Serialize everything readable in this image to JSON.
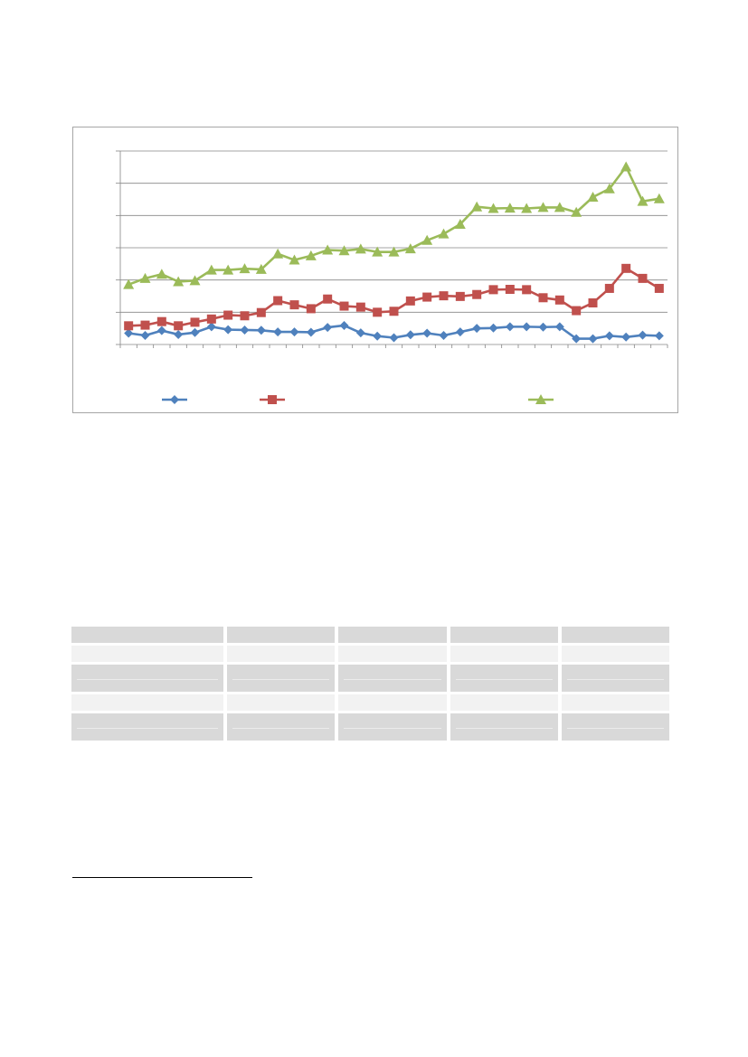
{
  "colors": {
    "series_blue": "#4f81bd",
    "series_red": "#c0504d",
    "series_green": "#9bbb59",
    "gridline": "#868686",
    "table_dark": "#d9d9d9",
    "table_light": "#f2f2f2"
  },
  "chart_data": {
    "type": "line",
    "title": "",
    "xlabel": "",
    "ylabel": "",
    "ylim": [
      0,
      6
    ],
    "grid": true,
    "legend_placement": "bottom",
    "series": [
      {
        "color": "#4f81bd",
        "marker": "diamond",
        "values": [
          0.35,
          0.28,
          0.43,
          0.31,
          0.37,
          0.55,
          0.46,
          0.45,
          0.44,
          0.39,
          0.39,
          0.38,
          0.53,
          0.59,
          0.36,
          0.26,
          0.21,
          0.3,
          0.35,
          0.28,
          0.39,
          0.5,
          0.51,
          0.55,
          0.55,
          0.54,
          0.55,
          0.18,
          0.18,
          0.27,
          0.23,
          0.29,
          0.27
        ]
      },
      {
        "color": "#c0504d",
        "marker": "square",
        "values": [
          0.58,
          0.6,
          0.71,
          0.58,
          0.69,
          0.79,
          0.91,
          0.89,
          0.99,
          1.36,
          1.23,
          1.11,
          1.41,
          1.19,
          1.16,
          1.0,
          1.03,
          1.35,
          1.47,
          1.51,
          1.49,
          1.55,
          1.7,
          1.71,
          1.7,
          1.45,
          1.38,
          1.05,
          1.29,
          1.74,
          2.36,
          2.05,
          1.74
        ]
      },
      {
        "color": "#9bbb59",
        "marker": "triangle",
        "values": [
          1.86,
          2.05,
          2.18,
          1.95,
          1.98,
          2.31,
          2.31,
          2.35,
          2.33,
          2.81,
          2.62,
          2.75,
          2.93,
          2.91,
          2.96,
          2.87,
          2.87,
          2.97,
          3.23,
          3.43,
          3.73,
          4.27,
          4.22,
          4.23,
          4.22,
          4.25,
          4.25,
          4.1,
          4.57,
          4.83,
          5.51,
          4.44,
          4.52
        ]
      }
    ]
  },
  "table": {
    "rows": [
      {
        "style": "dark",
        "cells": [
          "",
          "",
          "",
          "",
          ""
        ]
      },
      {
        "style": "light",
        "cells": [
          "",
          "",
          "",
          "",
          ""
        ]
      },
      {
        "style": "dark-tall",
        "cells": [
          "",
          "",
          "",
          "",
          ""
        ]
      },
      {
        "style": "light",
        "cells": [
          "",
          "",
          "",
          "",
          ""
        ]
      },
      {
        "style": "dark-tall",
        "cells": [
          "",
          "",
          "",
          "",
          ""
        ]
      }
    ]
  }
}
